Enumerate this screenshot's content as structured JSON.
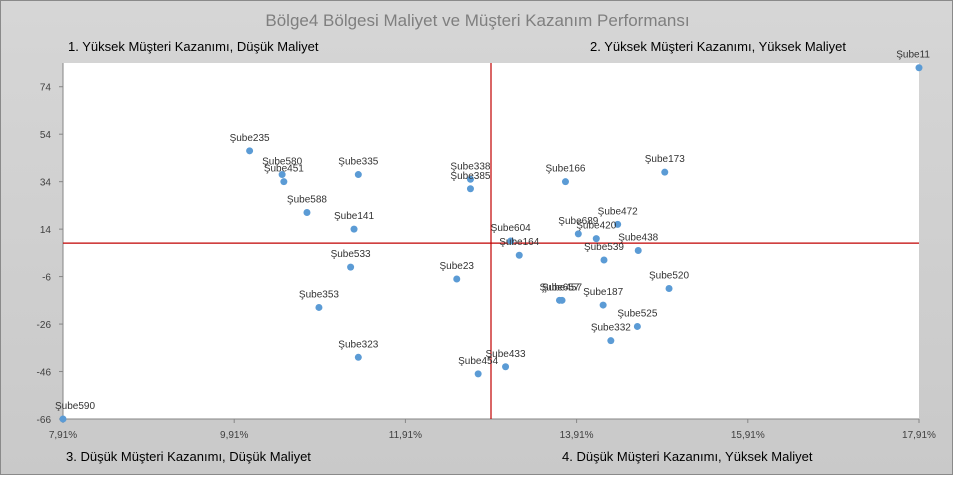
{
  "chart_data": {
    "type": "scatter",
    "title": "Bölge4 Bölgesi Maliyet ve Müşteri Kazanım Performansı",
    "quadrants": {
      "q1": "1. Yüksek Müşteri Kazanımı, Düşük Maliyet",
      "q2": "2. Yüksek Müşteri Kazanımı, Yüksek Maliyet",
      "q3": "3. Düşük Müşteri Kazanımı, Düşük Maliyet",
      "q4": "4. Düşük Müşteri Kazanımı, Yüksek Maliyet"
    },
    "xlim": [
      7.91,
      17.91
    ],
    "ylim": [
      -66,
      84
    ],
    "x_ticks": [
      7.91,
      9.91,
      11.91,
      13.91,
      15.91,
      17.91
    ],
    "x_tick_labels": [
      "7,91%",
      "9,91%",
      "11,91%",
      "13,91%",
      "15,91%",
      "17,91%"
    ],
    "y_ticks": [
      -66,
      -46,
      -26,
      -6,
      14,
      34,
      54,
      74
    ],
    "y_tick_labels": [
      "-66",
      "-46",
      "-26",
      "-6",
      "14",
      "34",
      "54",
      "74"
    ],
    "crosshair": {
      "x": 12.91,
      "y": 8.1
    },
    "marker_color": "#5b9bd5",
    "crosshair_color": "#c00000",
    "points": [
      {
        "name": "Şube11",
        "x": 17.91,
        "y": 82
      },
      {
        "name": "Şube235",
        "x": 10.09,
        "y": 47
      },
      {
        "name": "Şube580",
        "x": 10.47,
        "y": 37
      },
      {
        "name": "Şube451",
        "x": 10.49,
        "y": 34
      },
      {
        "name": "Şube335",
        "x": 11.36,
        "y": 37
      },
      {
        "name": "Şube338",
        "x": 12.67,
        "y": 35
      },
      {
        "name": "Şube385",
        "x": 12.67,
        "y": 31
      },
      {
        "name": "Şube166",
        "x": 13.78,
        "y": 34
      },
      {
        "name": "Şube173",
        "x": 14.94,
        "y": 38
      },
      {
        "name": "Şube588",
        "x": 10.76,
        "y": 21
      },
      {
        "name": "Şube141",
        "x": 11.31,
        "y": 14
      },
      {
        "name": "Şube472",
        "x": 14.39,
        "y": 16
      },
      {
        "name": "Şube689",
        "x": 13.93,
        "y": 12
      },
      {
        "name": "Şube420",
        "x": 14.14,
        "y": 10
      },
      {
        "name": "Şube604",
        "x": 13.14,
        "y": 9
      },
      {
        "name": "Şube164",
        "x": 13.24,
        "y": 3
      },
      {
        "name": "Şube438",
        "x": 14.63,
        "y": 5
      },
      {
        "name": "Şube539",
        "x": 14.23,
        "y": 1
      },
      {
        "name": "Şube533",
        "x": 11.27,
        "y": -2
      },
      {
        "name": "Şube23",
        "x": 12.51,
        "y": -7
      },
      {
        "name": "Şube520",
        "x": 14.99,
        "y": -11
      },
      {
        "name": "Şube657",
        "x": 13.71,
        "y": -16
      },
      {
        "name": "Şube457",
        "x": 13.74,
        "y": -16
      },
      {
        "name": "Şube187",
        "x": 14.22,
        "y": -18
      },
      {
        "name": "Şube353",
        "x": 10.9,
        "y": -19
      },
      {
        "name": "Şube525",
        "x": 14.62,
        "y": -27
      },
      {
        "name": "Şube332",
        "x": 14.31,
        "y": -33
      },
      {
        "name": "Şube323",
        "x": 11.36,
        "y": -40
      },
      {
        "name": "Şube433",
        "x": 13.08,
        "y": -44
      },
      {
        "name": "Şube454",
        "x": 12.76,
        "y": -47
      },
      {
        "name": "Şube590",
        "x": 7.91,
        "y": -66
      }
    ]
  }
}
